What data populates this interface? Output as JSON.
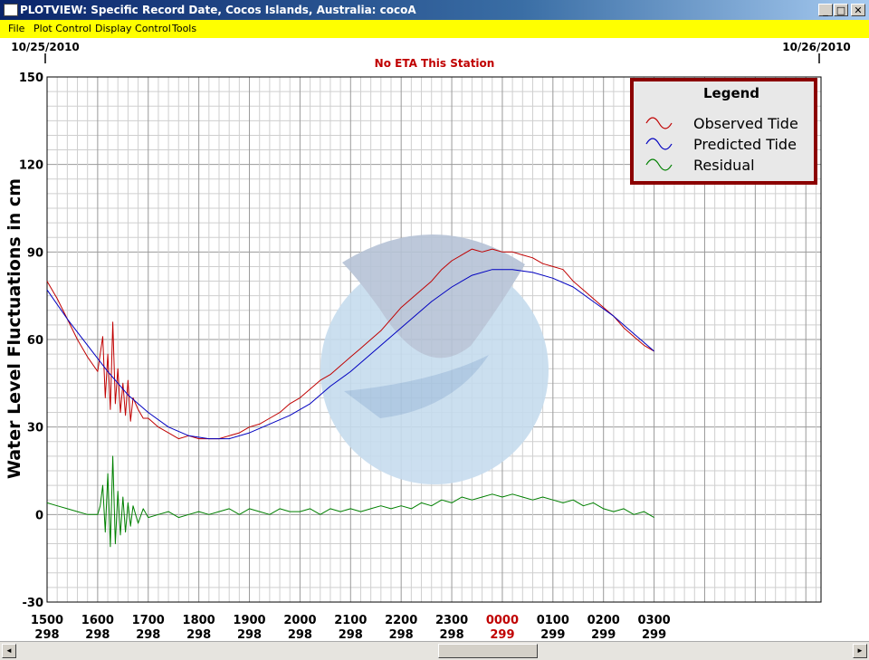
{
  "window": {
    "title": "PLOTVIEW: Specific Record Date, Cocos Islands, Australia: cocoA",
    "minimize": "_",
    "maximize": "□",
    "close": "✕"
  },
  "menu": [
    "File",
    "Plot Control",
    "Display Control",
    "Tools"
  ],
  "scrollbar": {
    "left_arrow": "◄",
    "right_arrow": "►"
  },
  "chart_data": {
    "type": "line",
    "date_left": "10/25/2010",
    "date_right": "10/26/2010",
    "notice": "No ETA This Station",
    "notice_color": "#c00000",
    "ylabel": "Water Level Fluctuations in cm",
    "ylim": [
      -30,
      150
    ],
    "yticks": [
      150,
      120,
      90,
      60,
      30,
      0,
      -30
    ],
    "xlim": [
      1500,
      3030
    ],
    "xticks": [
      {
        "time": "1500",
        "day": "298",
        "x": 1500
      },
      {
        "time": "1600",
        "day": "298",
        "x": 1600
      },
      {
        "time": "1700",
        "day": "298",
        "x": 1700
      },
      {
        "time": "1800",
        "day": "298",
        "x": 1800
      },
      {
        "time": "1900",
        "day": "298",
        "x": 1900
      },
      {
        "time": "2000",
        "day": "298",
        "x": 2000
      },
      {
        "time": "2100",
        "day": "298",
        "x": 2100
      },
      {
        "time": "2200",
        "day": "298",
        "x": 2200
      },
      {
        "time": "2300",
        "day": "298",
        "x": 2300
      },
      {
        "time": "0000",
        "day": "299",
        "x": 2400,
        "highlight": true
      },
      {
        "time": "0100",
        "day": "299",
        "x": 2500
      },
      {
        "time": "0200",
        "day": "299",
        "x": 2600
      },
      {
        "time": "0300",
        "day": "299",
        "x": 2700
      }
    ],
    "legend": {
      "title": "Legend",
      "placement": "top-right",
      "entries": [
        {
          "label": "Observed Tide",
          "color": "#c00000"
        },
        {
          "label": "Predicted Tide",
          "color": "#0000c0"
        },
        {
          "label": "Residual",
          "color": "#008000"
        }
      ]
    },
    "grid": true,
    "series": [
      {
        "name": "Observed Tide",
        "color": "#c00000",
        "x": [
          1500,
          1520,
          1540,
          1560,
          1580,
          1600,
          1610,
          1615,
          1620,
          1625,
          1630,
          1635,
          1640,
          1645,
          1650,
          1655,
          1660,
          1665,
          1670,
          1680,
          1690,
          1700,
          1720,
          1740,
          1760,
          1780,
          1800,
          1820,
          1840,
          1860,
          1880,
          1900,
          1920,
          1940,
          1960,
          1980,
          2000,
          2020,
          2040,
          2060,
          2080,
          2100,
          2120,
          2140,
          2160,
          2180,
          2200,
          2220,
          2240,
          2260,
          2280,
          2300,
          2320,
          2340,
          2360,
          2380,
          2400,
          2420,
          2440,
          2460,
          2480,
          2500,
          2520,
          2540,
          2560,
          2580,
          2600,
          2620,
          2640,
          2660,
          2680,
          2700
        ],
        "values": [
          80,
          74,
          67,
          60,
          54,
          49,
          61,
          40,
          55,
          36,
          66,
          38,
          50,
          35,
          45,
          34,
          46,
          32,
          40,
          36,
          33,
          33,
          30,
          28,
          26,
          27,
          26,
          26,
          26,
          27,
          28,
          30,
          31,
          33,
          35,
          38,
          40,
          43,
          46,
          48,
          51,
          54,
          57,
          60,
          63,
          67,
          71,
          74,
          77,
          80,
          84,
          87,
          89,
          91,
          90,
          91,
          90,
          90,
          89,
          88,
          86,
          85,
          84,
          80,
          77,
          74,
          71,
          68,
          64,
          61,
          58,
          56
        ]
      },
      {
        "name": "Predicted Tide",
        "color": "#0000c0",
        "x": [
          1500,
          1540,
          1580,
          1620,
          1660,
          1700,
          1740,
          1780,
          1820,
          1860,
          1900,
          1940,
          1980,
          2020,
          2060,
          2100,
          2140,
          2180,
          2220,
          2260,
          2300,
          2340,
          2380,
          2420,
          2460,
          2500,
          2540,
          2580,
          2620,
          2660,
          2700
        ],
        "values": [
          77,
          67,
          58,
          49,
          41,
          35,
          30,
          27,
          26,
          26,
          28,
          31,
          34,
          38,
          44,
          49,
          55,
          61,
          67,
          73,
          78,
          82,
          84,
          84,
          83,
          81,
          78,
          73,
          68,
          62,
          56
        ]
      },
      {
        "name": "Residual",
        "color": "#008000",
        "x": [
          1500,
          1520,
          1540,
          1560,
          1580,
          1600,
          1605,
          1610,
          1615,
          1620,
          1625,
          1630,
          1635,
          1640,
          1645,
          1650,
          1655,
          1660,
          1665,
          1670,
          1680,
          1690,
          1700,
          1720,
          1740,
          1760,
          1780,
          1800,
          1820,
          1840,
          1860,
          1880,
          1900,
          1920,
          1940,
          1960,
          1980,
          2000,
          2020,
          2040,
          2060,
          2080,
          2100,
          2120,
          2140,
          2160,
          2180,
          2200,
          2220,
          2240,
          2260,
          2280,
          2300,
          2320,
          2340,
          2360,
          2380,
          2400,
          2420,
          2440,
          2460,
          2480,
          2500,
          2520,
          2540,
          2560,
          2580,
          2600,
          2620,
          2640,
          2660,
          2680,
          2700
        ],
        "values": [
          4,
          3,
          2,
          1,
          0,
          0,
          3,
          10,
          -6,
          14,
          -11,
          20,
          -10,
          8,
          -7,
          6,
          -6,
          4,
          -4,
          3,
          -3,
          2,
          -1,
          0,
          1,
          -1,
          0,
          1,
          0,
          1,
          2,
          0,
          2,
          1,
          0,
          2,
          1,
          1,
          2,
          0,
          2,
          1,
          2,
          1,
          2,
          3,
          2,
          3,
          2,
          4,
          3,
          5,
          4,
          6,
          5,
          6,
          7,
          6,
          7,
          6,
          5,
          6,
          5,
          4,
          5,
          3,
          4,
          2,
          1,
          2,
          0,
          1,
          -1
        ]
      }
    ]
  }
}
